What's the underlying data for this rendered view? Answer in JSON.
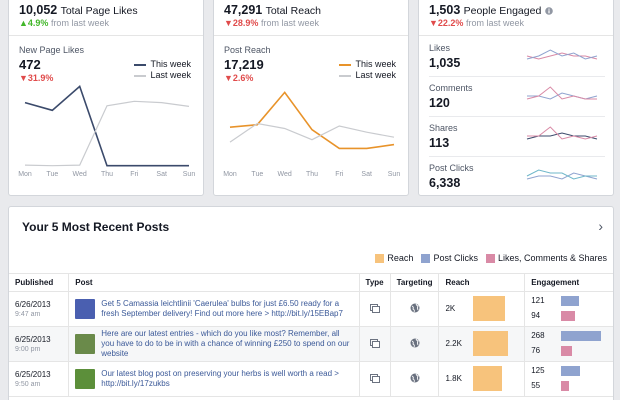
{
  "likes_card": {
    "total": "10,052",
    "total_label": "Total Page Likes",
    "change": "▲4.9%",
    "change_suffix": "from last week",
    "chart_title": "New Page Likes",
    "value": "472",
    "value_change": "▼31.9%"
  },
  "reach_card": {
    "total": "47,291",
    "total_label": "Total Reach",
    "change": "▼28.9%",
    "change_suffix": "from last week",
    "chart_title": "Post Reach",
    "value": "17,219",
    "value_change": "▼2.6%"
  },
  "engaged_card": {
    "total": "1,503",
    "total_label": "People Engaged",
    "info_icon": "info-icon",
    "change": "▼22.2%",
    "change_suffix": "from last week",
    "rows": [
      {
        "label": "Likes",
        "value": "1,035"
      },
      {
        "label": "Comments",
        "value": "120"
      },
      {
        "label": "Shares",
        "value": "113"
      },
      {
        "label": "Post Clicks",
        "value": "6,338"
      }
    ]
  },
  "legend": {
    "this_week": "This week",
    "last_week": "Last week"
  },
  "colors": {
    "likes_this_week": "#3b4a6b",
    "reach_this_week": "#e8932a",
    "last_week": "#c9cbcf",
    "up": "#42b72a",
    "down": "#e04b4b",
    "reach_bar": "#f7c37c",
    "post_clicks": "#8fa3cf",
    "engagement": "#d98aa6",
    "link": "#3b5998"
  },
  "days": [
    "Mon",
    "Tue",
    "Wed",
    "Thu",
    "Fri",
    "Sat",
    "Sun"
  ],
  "chart_data": [
    {
      "type": "line",
      "title": "New Page Likes",
      "categories": [
        "Mon",
        "Tue",
        "Wed",
        "Thu",
        "Fri",
        "Sat",
        "Sun"
      ],
      "series": [
        {
          "name": "This week",
          "values": [
            100,
            88,
            125,
            2,
            2,
            2,
            2
          ]
        },
        {
          "name": "Last week",
          "values": [
            3,
            2,
            3,
            95,
            102,
            100,
            94
          ]
        }
      ],
      "ylim": [
        0,
        135
      ]
    },
    {
      "type": "line",
      "title": "Post Reach",
      "categories": [
        "Mon",
        "Tue",
        "Wed",
        "Thu",
        "Fri",
        "Sat",
        "Sun"
      ],
      "series": [
        {
          "name": "This week",
          "values": [
            3.2,
            3.4,
            6.0,
            3.0,
            1.5,
            1.5,
            1.8
          ]
        },
        {
          "name": "Last week",
          "values": [
            2.0,
            3.5,
            3.1,
            2.2,
            3.3,
            2.8,
            2.4
          ]
        }
      ],
      "ylim": [
        0,
        7
      ]
    }
  ],
  "sparklines": [
    {
      "this_week": [
        2,
        3,
        5,
        3,
        4,
        2,
        3
      ],
      "last_week": [
        3,
        2,
        3,
        4,
        3,
        3,
        2
      ]
    },
    {
      "this_week": [
        2,
        3,
        6,
        2,
        3,
        2,
        2
      ],
      "last_week": [
        3,
        3,
        2,
        4,
        3,
        2,
        3
      ]
    },
    {
      "this_week": [
        3,
        3,
        6,
        2,
        3,
        2,
        3
      ],
      "last_week": [
        2,
        3,
        3,
        4,
        3,
        3,
        2
      ]
    },
    {
      "this_week": [
        3,
        5,
        4,
        4,
        2,
        3,
        3
      ],
      "last_week": [
        2,
        3,
        3,
        2,
        4,
        3,
        2
      ]
    }
  ],
  "posts": {
    "title": "Your 5 Most Recent Posts",
    "legend": [
      "Reach",
      "Post Clicks",
      "Likes, Comments & Shares"
    ],
    "headers": [
      "Published",
      "Post",
      "Type",
      "Targeting",
      "Reach",
      "Engagement"
    ],
    "rows": [
      {
        "date": "6/26/2013",
        "time": "9:47 am",
        "text": "Get 5 Camassia leichtlinii 'Caerulea' bulbs for just £6.50 ready for a fresh September delivery! Find out more here > http://bit.ly/15EBap7",
        "thumb": "#4a5fb0",
        "reach": "2K",
        "reach_frac": 0.83,
        "clicks": "121",
        "clicks_frac": 0.45,
        "likes": "94",
        "likes_frac": 0.35
      },
      {
        "date": "6/25/2013",
        "time": "9:00 pm",
        "text": "Here are our latest entries - which do you like most? Remember, all you have to do to be in with a chance of winning £250 to spend on our website",
        "thumb": "#6a8a4a",
        "reach": "2.2K",
        "reach_frac": 0.92,
        "clicks": "268",
        "clicks_frac": 1.0,
        "likes": "76",
        "likes_frac": 0.28
      },
      {
        "date": "6/25/2013",
        "time": "9:50 am",
        "text": "Our latest blog post on preserving your herbs is well worth a read > http://bit.ly/17zukbs",
        "thumb": "#5c8f3a",
        "reach": "1.8K",
        "reach_frac": 0.75,
        "clicks": "125",
        "clicks_frac": 0.47,
        "likes": "55",
        "likes_frac": 0.21
      }
    ]
  }
}
